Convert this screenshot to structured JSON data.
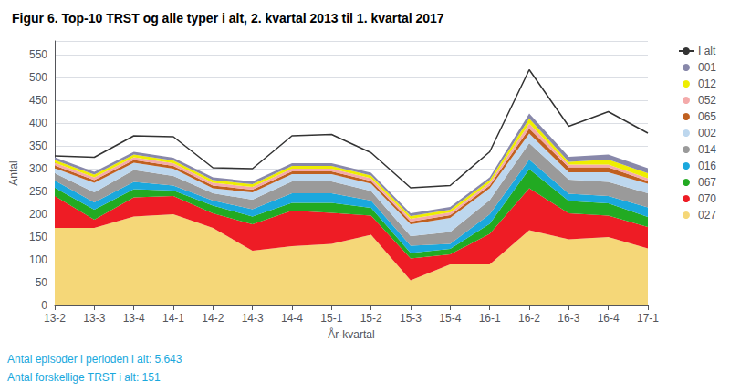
{
  "chart_data": {
    "type": "area",
    "stacked": true,
    "title": "Figur 6. Top-10 TRST og alle typer i alt, 2. kvartal 2013 til 1. kvartal 2017",
    "xlabel": "År-kvartal",
    "ylabel": "Antal",
    "annotations": [
      "Antal episoder i perioden i alt: 5.643",
      "Antal forskellige TRST i alt: 151"
    ],
    "categories": [
      "13-2",
      "13-3",
      "13-4",
      "14-1",
      "14-2",
      "14-3",
      "14-4",
      "15-1",
      "15-2",
      "15-3",
      "15-4",
      "16-1",
      "16-2",
      "16-3",
      "16-4",
      "17-1"
    ],
    "series": [
      {
        "name": "027",
        "color": "#F5D778",
        "values": [
          170,
          170,
          195,
          200,
          170,
          120,
          130,
          135,
          155,
          55,
          90,
          90,
          165,
          145,
          150,
          125
        ]
      },
      {
        "name": "070",
        "color": "#EE1C25",
        "values": [
          70,
          18,
          42,
          40,
          32,
          58,
          78,
          68,
          42,
          48,
          22,
          67,
          92,
          57,
          47,
          47
        ]
      },
      {
        "name": "067",
        "color": "#22AA22",
        "values": [
          18,
          22,
          18,
          12,
          17,
          17,
          17,
          22,
          17,
          12,
          12,
          22,
          42,
          27,
          27,
          22
        ]
      },
      {
        "name": "016",
        "color": "#1AA8DD",
        "values": [
          16,
          16,
          16,
          11,
          11,
          16,
          21,
          21,
          16,
          16,
          11,
          21,
          21,
          16,
          16,
          21
        ]
      },
      {
        "name": "014",
        "color": "#9A9A9A",
        "values": [
          16,
          22,
          26,
          21,
          16,
          21,
          26,
          26,
          21,
          21,
          26,
          31,
          36,
          31,
          31,
          31
        ]
      },
      {
        "name": "002",
        "color": "#BDD7EE",
        "values": [
          11,
          21,
          16,
          16,
          11,
          16,
          16,
          16,
          16,
          26,
          31,
          26,
          21,
          16,
          21,
          21
        ]
      },
      {
        "name": "065",
        "color": "#C06020",
        "values": [
          6,
          6,
          6,
          6,
          6,
          6,
          6,
          6,
          6,
          6,
          6,
          6,
          11,
          11,
          11,
          6
        ]
      },
      {
        "name": "052",
        "color": "#F4AAAA",
        "values": [
          6,
          6,
          6,
          6,
          6,
          6,
          6,
          6,
          6,
          6,
          6,
          6,
          11,
          6,
          6,
          6
        ]
      },
      {
        "name": "012",
        "color": "#EEEE00",
        "values": [
          6,
          6,
          6,
          6,
          6,
          6,
          6,
          6,
          6,
          6,
          6,
          6,
          11,
          6,
          11,
          11
        ]
      },
      {
        "name": "001",
        "color": "#8888AA",
        "values": [
          6,
          6,
          6,
          6,
          6,
          6,
          6,
          6,
          6,
          6,
          6,
          6,
          11,
          11,
          11,
          11
        ]
      },
      {
        "name": "I alt",
        "type": "line",
        "color": "#333333",
        "values": [
          328,
          325,
          372,
          370,
          302,
          300,
          372,
          375,
          335,
          258,
          263,
          337,
          517,
          393,
          425,
          378
        ]
      }
    ],
    "ylim": [
      0,
      580
    ],
    "yticks": [
      0,
      50,
      100,
      150,
      200,
      250,
      300,
      350,
      400,
      450,
      500,
      550
    ],
    "grid": true,
    "legend": "right"
  }
}
